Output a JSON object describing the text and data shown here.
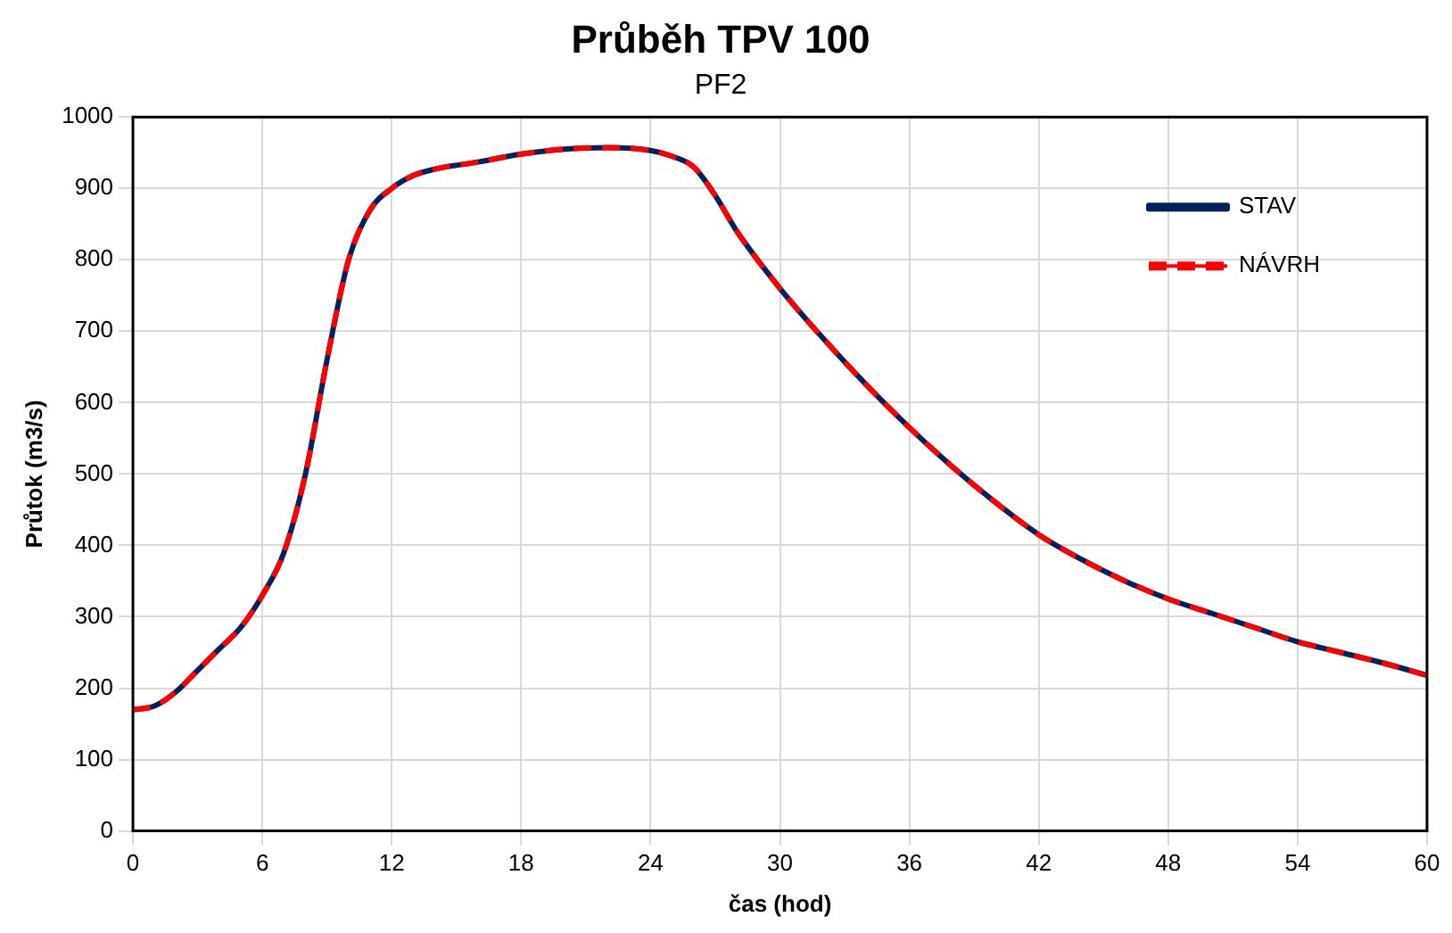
{
  "chart_data": {
    "type": "line",
    "title": "Průběh TPV 100",
    "subtitle": "PF2",
    "xlabel": "čas (hod)",
    "ylabel": "Průtok (m3/s)",
    "x": [
      0,
      1,
      2,
      3,
      4,
      5,
      6,
      7,
      8,
      9,
      10,
      11,
      12,
      13,
      14,
      16,
      18,
      20,
      22,
      24,
      25,
      26,
      27,
      28,
      30,
      32,
      34,
      36,
      38,
      40,
      42,
      44,
      46,
      48,
      50,
      52,
      54,
      56,
      58,
      60
    ],
    "series": [
      {
        "name": "STAV",
        "color": "#002060",
        "line_style": "solid",
        "values": [
          170,
          175,
          195,
          225,
          255,
          285,
          330,
          390,
          500,
          660,
          800,
          870,
          900,
          918,
          927,
          937,
          948,
          955,
          957,
          953,
          945,
          930,
          890,
          840,
          760,
          690,
          625,
          565,
          510,
          460,
          415,
          380,
          350,
          325,
          305,
          285,
          265,
          250,
          235,
          218
        ]
      },
      {
        "name": "NÁVRH",
        "color": "#ff0000",
        "line_style": "dashed",
        "values": [
          170,
          175,
          195,
          225,
          255,
          285,
          330,
          390,
          500,
          660,
          800,
          870,
          900,
          918,
          927,
          937,
          948,
          955,
          957,
          953,
          945,
          930,
          890,
          840,
          760,
          690,
          625,
          565,
          510,
          460,
          415,
          380,
          350,
          325,
          305,
          285,
          265,
          250,
          235,
          218
        ]
      }
    ],
    "xlim": [
      0,
      60
    ],
    "xticks": [
      0,
      6,
      12,
      18,
      24,
      30,
      36,
      42,
      48,
      54,
      60
    ],
    "ylim": [
      0,
      1000
    ],
    "yticks": [
      0,
      100,
      200,
      300,
      400,
      500,
      600,
      700,
      800,
      900,
      1000
    ],
    "grid": true,
    "legend": "top right",
    "marker": "none"
  }
}
